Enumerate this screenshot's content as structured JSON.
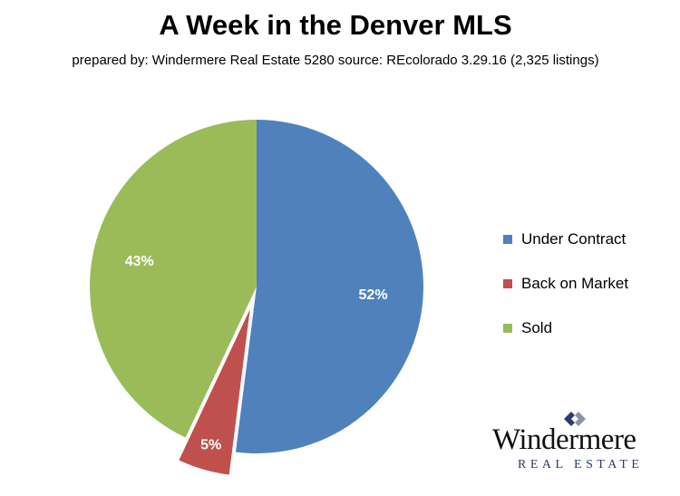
{
  "chart_data": {
    "type": "pie",
    "title": "A Week in the Denver MLS",
    "subtitle": "prepared by: Windermere Real Estate 5280  source: REcolorado  3.29.16 (2,325 listings)",
    "categories": [
      "Under Contract",
      "Back on Market",
      "Sold"
    ],
    "values": [
      52,
      5,
      43
    ],
    "data_labels": [
      "52%",
      "5%",
      "43%"
    ],
    "colors": [
      "#4f81bd",
      "#c0504d",
      "#9bbb59"
    ],
    "exploded": [
      false,
      true,
      false
    ],
    "legend": "right"
  },
  "logo": {
    "name": "Windermere",
    "tagline": "REAL ESTATE",
    "mark_color": "#2b3c6b"
  }
}
